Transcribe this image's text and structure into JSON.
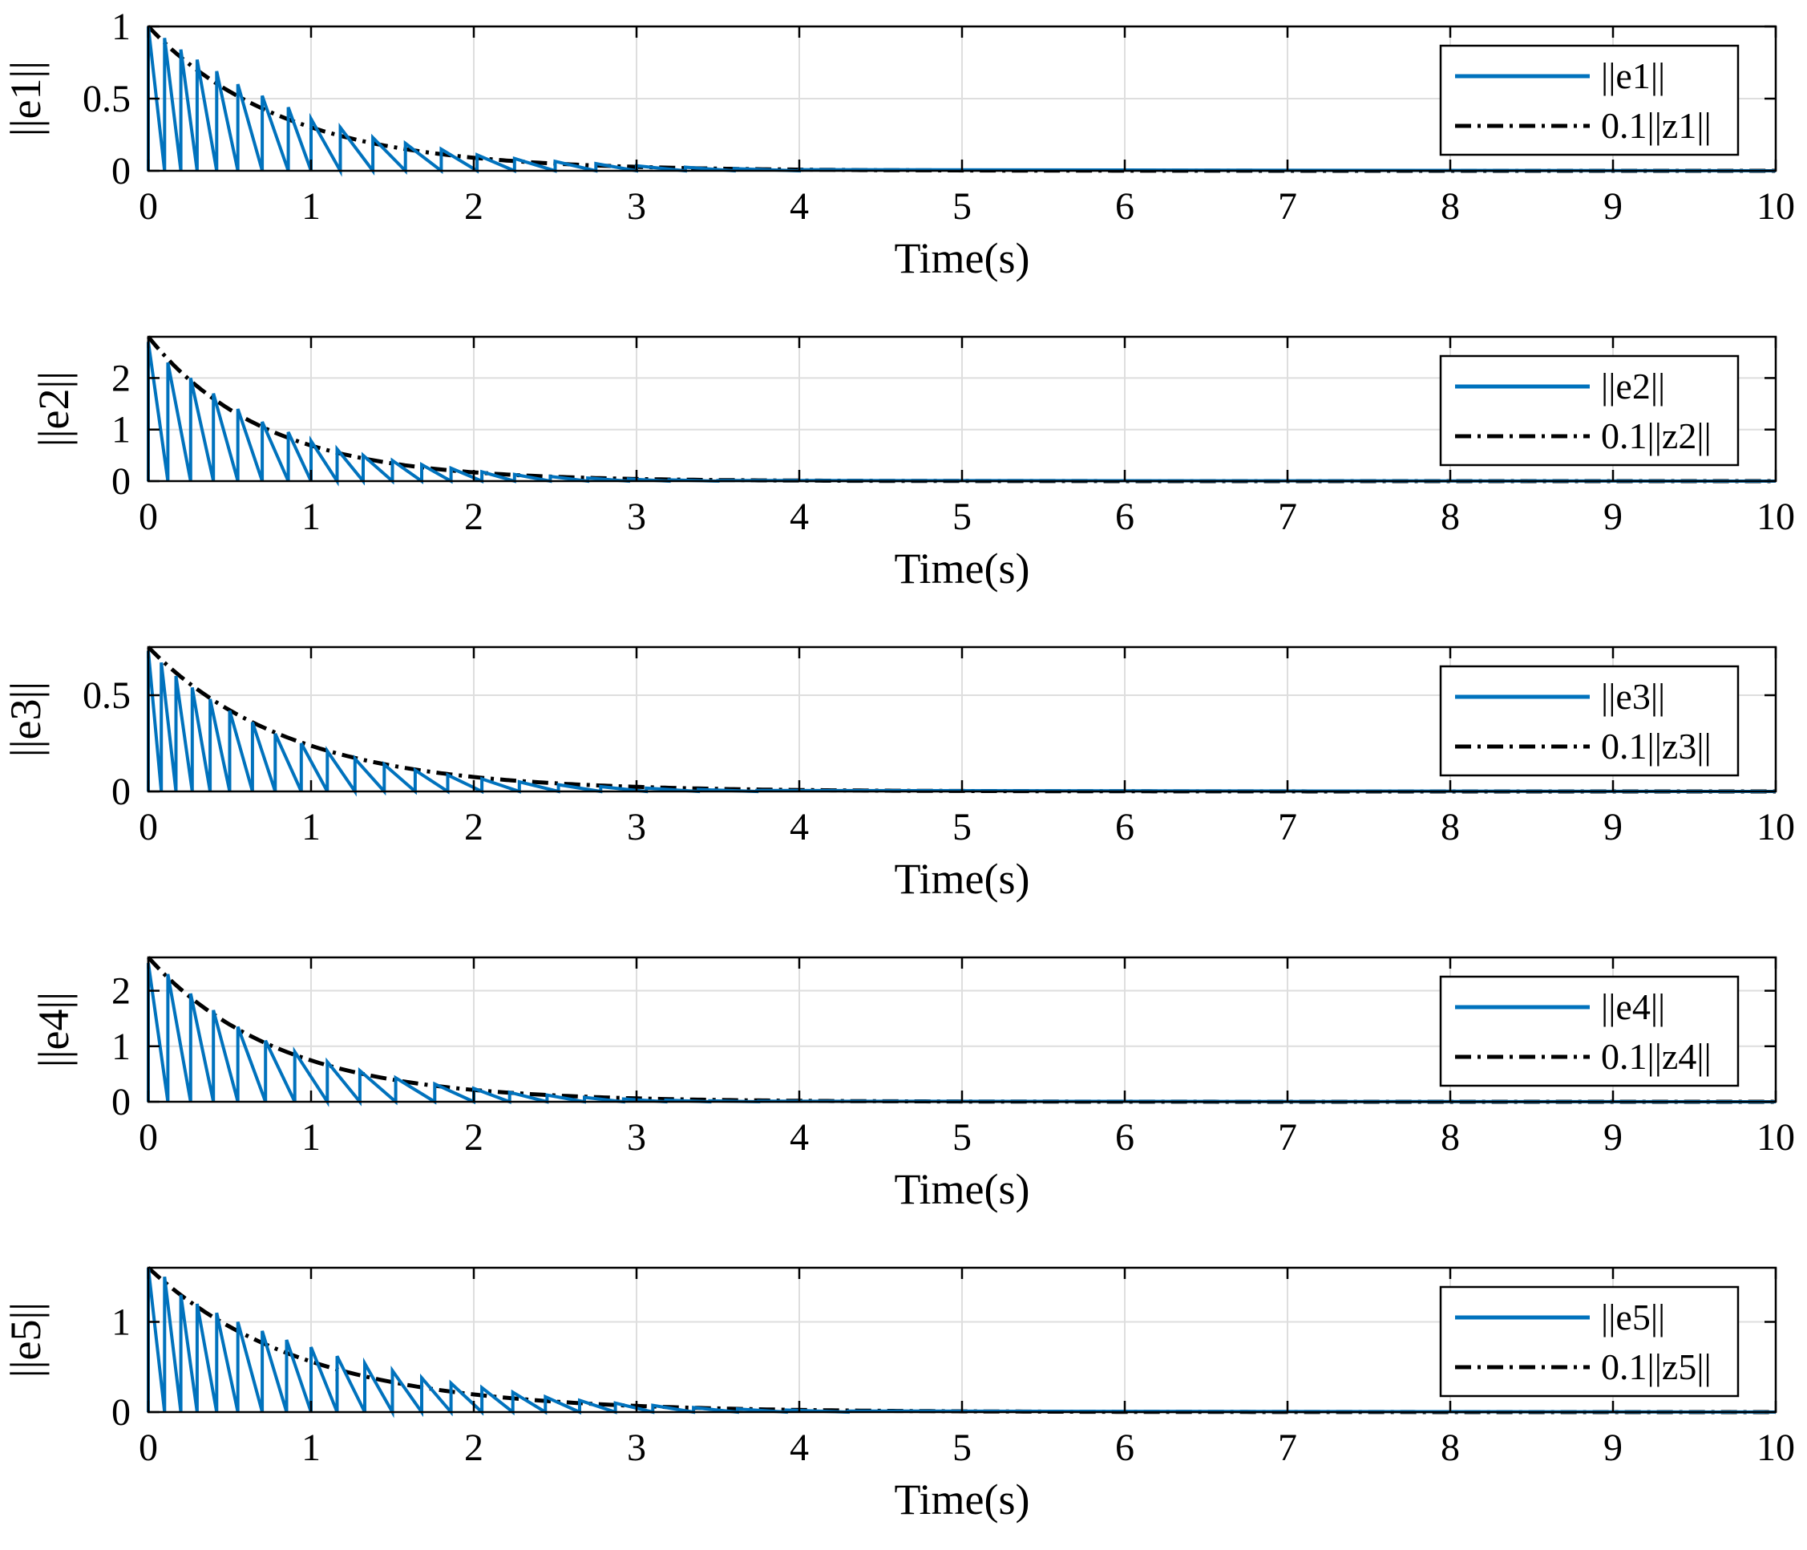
{
  "chart_data": [
    {
      "type": "line",
      "ylabel": "||e1||",
      "xlabel": "Time(s)",
      "xlim": [
        0,
        10
      ],
      "ylim": [
        0,
        1
      ],
      "xticks": [
        0,
        1,
        2,
        3,
        4,
        5,
        6,
        7,
        8,
        9,
        10
      ],
      "yticks": [
        0,
        0.5,
        1
      ],
      "ytick_labels": [
        "0",
        "0.5",
        "1"
      ],
      "grid": true,
      "legend_position": "top-right",
      "bound": {
        "name": "0.1||z1||",
        "initial": 1.0,
        "decay_rate": 1.2,
        "color": "#000000",
        "style": "dash-dot"
      },
      "error": {
        "name": "||e1||",
        "color": "#0072BD",
        "events": [
          0,
          0.1,
          0.2,
          0.3,
          0.42,
          0.55,
          0.7,
          0.86,
          1.0,
          1.18,
          1.38,
          1.58,
          1.8,
          2.02,
          2.25,
          2.5,
          2.75,
          3.0,
          3.3,
          3.6,
          4.0
        ],
        "peaks": [
          1.0,
          0.92,
          0.84,
          0.77,
          0.69,
          0.6,
          0.52,
          0.44,
          0.36,
          0.3,
          0.23,
          0.19,
          0.15,
          0.11,
          0.085,
          0.065,
          0.05,
          0.035,
          0.025,
          0.015,
          0.008
        ]
      }
    },
    {
      "type": "line",
      "ylabel": "||e2||",
      "xlabel": "Time(s)",
      "xlim": [
        0,
        10
      ],
      "ylim": [
        0,
        2.8
      ],
      "xticks": [
        0,
        1,
        2,
        3,
        4,
        5,
        6,
        7,
        8,
        9,
        10
      ],
      "yticks": [
        0,
        1,
        2
      ],
      "ytick_labels": [
        "0",
        "1",
        "2"
      ],
      "grid": true,
      "legend_position": "top-right",
      "bound": {
        "name": "0.1||z2||",
        "initial": 2.8,
        "decay_rate": 1.4,
        "color": "#000000",
        "style": "dash-dot"
      },
      "error": {
        "name": "||e2||",
        "color": "#0072BD",
        "events": [
          0,
          0.12,
          0.26,
          0.4,
          0.55,
          0.7,
          0.86,
          1.0,
          1.16,
          1.32,
          1.5,
          1.68,
          1.86,
          2.05,
          2.25,
          2.47,
          2.7,
          2.95,
          3.2,
          3.5
        ],
        "peaks": [
          2.7,
          2.3,
          2.0,
          1.7,
          1.4,
          1.15,
          0.95,
          0.78,
          0.62,
          0.5,
          0.4,
          0.32,
          0.25,
          0.18,
          0.13,
          0.09,
          0.06,
          0.04,
          0.025,
          0.012
        ]
      }
    },
    {
      "type": "line",
      "ylabel": "||e3||",
      "xlabel": "Time(s)",
      "xlim": [
        0,
        10
      ],
      "ylim": [
        0,
        0.75
      ],
      "xticks": [
        0,
        1,
        2,
        3,
        4,
        5,
        6,
        7,
        8,
        9,
        10
      ],
      "yticks": [
        0,
        0.5
      ],
      "ytick_labels": [
        "0",
        "0.5"
      ],
      "grid": true,
      "legend_position": "top-right",
      "bound": {
        "name": "0.1||z3||",
        "initial": 0.75,
        "decay_rate": 1.15,
        "color": "#000000",
        "style": "dash-dot"
      },
      "error": {
        "name": "||e3||",
        "color": "#0072BD",
        "events": [
          0,
          0.08,
          0.17,
          0.27,
          0.38,
          0.5,
          0.64,
          0.78,
          0.94,
          1.1,
          1.27,
          1.45,
          1.64,
          1.84,
          2.05,
          2.28,
          2.52,
          2.78,
          3.06,
          3.38,
          3.74
        ],
        "peaks": [
          0.73,
          0.67,
          0.6,
          0.54,
          0.48,
          0.42,
          0.36,
          0.3,
          0.25,
          0.21,
          0.17,
          0.14,
          0.11,
          0.085,
          0.065,
          0.05,
          0.035,
          0.025,
          0.017,
          0.01,
          0.005
        ]
      }
    },
    {
      "type": "line",
      "ylabel": "||e4||",
      "xlabel": "Time(s)",
      "xlim": [
        0,
        10
      ],
      "ylim": [
        0,
        2.6
      ],
      "xticks": [
        0,
        1,
        2,
        3,
        4,
        5,
        6,
        7,
        8,
        9,
        10
      ],
      "yticks": [
        0,
        1,
        2
      ],
      "ytick_labels": [
        "0",
        "1",
        "2"
      ],
      "grid": true,
      "legend_position": "top-right",
      "bound": {
        "name": "0.1||z4||",
        "initial": 2.6,
        "decay_rate": 1.25,
        "color": "#000000",
        "style": "dash-dot"
      },
      "error": {
        "name": "||e4||",
        "color": "#0072BD",
        "events": [
          0,
          0.12,
          0.26,
          0.4,
          0.55,
          0.72,
          0.9,
          1.1,
          1.3,
          1.52,
          1.76,
          2.0,
          2.22,
          2.45,
          2.68,
          2.92,
          3.18,
          3.45,
          3.75
        ],
        "peaks": [
          2.5,
          2.3,
          1.95,
          1.65,
          1.35,
          1.1,
          0.9,
          0.72,
          0.56,
          0.43,
          0.32,
          0.24,
          0.17,
          0.12,
          0.08,
          0.05,
          0.03,
          0.018,
          0.01
        ]
      }
    },
    {
      "type": "line",
      "ylabel": "||e5||",
      "xlabel": "Time(s)",
      "xlim": [
        0,
        10
      ],
      "ylim": [
        0,
        1.6
      ],
      "xticks": [
        0,
        1,
        2,
        3,
        4,
        5,
        6,
        7,
        8,
        9,
        10
      ],
      "yticks": [
        0,
        1
      ],
      "ytick_labels": [
        "0",
        "1"
      ],
      "grid": true,
      "legend_position": "top-right",
      "bound": {
        "name": "0.1||z5||",
        "initial": 1.6,
        "decay_rate": 1.05,
        "color": "#000000",
        "style": "dash-dot"
      },
      "error": {
        "name": "||e5||",
        "color": "#0072BD",
        "events": [
          0,
          0.1,
          0.2,
          0.3,
          0.42,
          0.55,
          0.7,
          0.85,
          1.0,
          1.16,
          1.33,
          1.5,
          1.68,
          1.86,
          2.05,
          2.24,
          2.44,
          2.65,
          2.87,
          3.1,
          3.35,
          3.62,
          3.92,
          4.3
        ],
        "peaks": [
          1.6,
          1.5,
          1.3,
          1.2,
          1.1,
          1.0,
          0.9,
          0.8,
          0.72,
          0.62,
          0.54,
          0.46,
          0.38,
          0.32,
          0.27,
          0.22,
          0.17,
          0.13,
          0.1,
          0.075,
          0.05,
          0.035,
          0.022,
          0.012
        ]
      }
    }
  ]
}
